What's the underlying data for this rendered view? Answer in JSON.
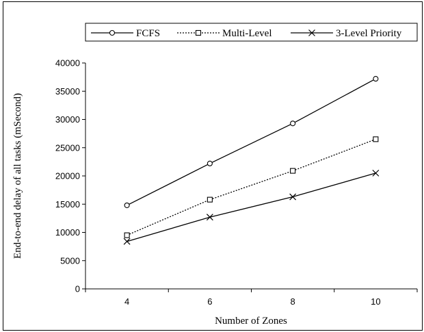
{
  "chart_data": {
    "type": "line",
    "title": "",
    "xlabel": "Number of Zones",
    "ylabel": "End-to-end delay of all tasks (mSecond)",
    "x": [
      4,
      6,
      8,
      10
    ],
    "x_tick_labels": [
      "4",
      "6",
      "8",
      "10"
    ],
    "xlim": [
      3,
      11
    ],
    "ylim": [
      0,
      40000
    ],
    "y_ticks": [
      0,
      5000,
      10000,
      15000,
      20000,
      25000,
      30000,
      35000,
      40000
    ],
    "y_tick_labels": [
      "0",
      "5000",
      "10000",
      "15000",
      "20000",
      "25000",
      "30000",
      "35000",
      "40000"
    ],
    "grid": false,
    "legend_position": "top",
    "series": [
      {
        "name": "FCFS",
        "values": [
          14800,
          22200,
          29300,
          37200
        ],
        "marker": "circle",
        "line_style": "solid",
        "color": "#000000"
      },
      {
        "name": "Multi-Level",
        "values": [
          9500,
          15800,
          20900,
          26500
        ],
        "marker": "square",
        "line_style": "dotted",
        "color": "#000000"
      },
      {
        "name": "3-Level Priority",
        "values": [
          8400,
          12700,
          16300,
          20500
        ],
        "marker": "x",
        "line_style": "solid",
        "color": "#000000"
      }
    ]
  }
}
